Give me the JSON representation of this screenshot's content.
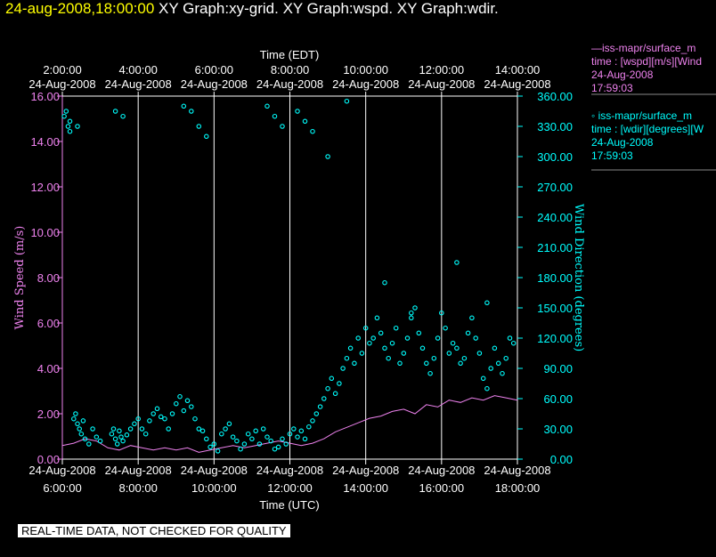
{
  "header": {
    "datetime": "24-aug-2008,18:00:00",
    "graph_titles": "XY Graph:xy-grid.  XY Graph:wspd.  XY Graph:wdir."
  },
  "legend": {
    "wspd": {
      "line1": "iss-mapr/surface_m",
      "line2": "time : [wspd][m/s][Wind",
      "line3": "24-Aug-2008",
      "line4": "17:59:03"
    },
    "wdir": {
      "line1": "iss-mapr/surface_m",
      "line2": "time : [wdir][degrees][W",
      "line3": "24-Aug-2008",
      "line4": "17:59:03"
    }
  },
  "footer": {
    "qc_note": "REAL-TIME DATA, NOT CHECKED FOR QUALITY"
  },
  "colors": {
    "wspd": "#ee82ee",
    "wdir": "#00ffff",
    "date": "#ffff00",
    "background": "#000000"
  },
  "chart_data": {
    "type": "line",
    "top_axis": {
      "label": "Time (EDT)",
      "ticks": [
        {
          "x": 2,
          "time": "2:00:00",
          "date": "24-Aug-2008"
        },
        {
          "x": 4,
          "time": "4:00:00",
          "date": "24-Aug-2008"
        },
        {
          "x": 6,
          "time": "6:00:00",
          "date": "24-Aug-2008"
        },
        {
          "x": 8,
          "time": "8:00:00",
          "date": "24-Aug-2008"
        },
        {
          "x": 10,
          "time": "10:00:00",
          "date": "24-Aug-2008"
        },
        {
          "x": 12,
          "time": "12:00:00",
          "date": "24-Aug-2008"
        },
        {
          "x": 14,
          "time": "14:00:00",
          "date": "24-Aug-2008"
        }
      ]
    },
    "bottom_axis": {
      "label": "Time (UTC)",
      "ticks": [
        {
          "x": 6,
          "time": "6:00:00",
          "date": "24-Aug-2008"
        },
        {
          "x": 8,
          "time": "8:00:00",
          "date": "24-Aug-2008"
        },
        {
          "x": 10,
          "time": "10:00:00",
          "date": "24-Aug-2008"
        },
        {
          "x": 12,
          "time": "12:00:00",
          "date": "24-Aug-2008"
        },
        {
          "x": 14,
          "time": "14:00:00",
          "date": "24-Aug-2008"
        },
        {
          "x": 16,
          "time": "16:00:00",
          "date": "24-Aug-2008"
        },
        {
          "x": 18,
          "time": "18:00:00",
          "date": "24-Aug-2008"
        }
      ]
    },
    "xlim": [
      6,
      18
    ],
    "left_axis": {
      "label": "Wind Speed (m/s)",
      "ylim": [
        0,
        16
      ],
      "ticks": [
        "0.00",
        "2.00",
        "4.00",
        "6.00",
        "8.00",
        "10.00",
        "12.00",
        "14.00",
        "16.00"
      ]
    },
    "right_axis": {
      "label": "Wind Direction (degrees)",
      "ylim": [
        0,
        360
      ],
      "ticks": [
        "0.00",
        "30.00",
        "60.00",
        "90.00",
        "120.00",
        "150.00",
        "180.00",
        "210.00",
        "240.00",
        "270.00",
        "300.00",
        "330.00",
        "360.00"
      ]
    },
    "series": [
      {
        "name": "wspd",
        "kind": "line",
        "axis": "left",
        "x": [
          6.0,
          6.3,
          6.6,
          6.9,
          7.2,
          7.5,
          7.8,
          8.1,
          8.4,
          8.7,
          9.0,
          9.3,
          9.6,
          9.9,
          10.2,
          10.5,
          10.8,
          11.1,
          11.4,
          11.7,
          12.0,
          12.3,
          12.6,
          12.9,
          13.2,
          13.5,
          13.8,
          14.1,
          14.4,
          14.7,
          15.0,
          15.3,
          15.6,
          15.9,
          16.2,
          16.5,
          16.8,
          17.1,
          17.4,
          17.7,
          18.0
        ],
        "y": [
          0.6,
          0.7,
          0.9,
          0.8,
          0.5,
          0.4,
          0.6,
          0.5,
          0.4,
          0.5,
          0.4,
          0.5,
          0.3,
          0.4,
          0.5,
          0.6,
          0.5,
          0.6,
          0.7,
          0.8,
          0.7,
          0.6,
          0.7,
          0.9,
          1.2,
          1.4,
          1.6,
          1.8,
          1.9,
          2.1,
          2.2,
          2.0,
          2.4,
          2.3,
          2.6,
          2.5,
          2.7,
          2.6,
          2.8,
          2.7,
          2.6
        ]
      },
      {
        "name": "wdir",
        "kind": "scatter",
        "axis": "right",
        "x": [
          6.05,
          6.1,
          6.15,
          6.2,
          6.3,
          6.35,
          6.4,
          6.45,
          6.5,
          6.55,
          6.6,
          6.7,
          6.8,
          6.9,
          7.0,
          7.3,
          7.35,
          7.4,
          7.45,
          7.5,
          7.55,
          7.6,
          7.7,
          7.8,
          7.9,
          8.0,
          8.1,
          8.2,
          8.3,
          8.4,
          8.5,
          8.6,
          8.7,
          8.8,
          8.9,
          9.0,
          9.1,
          9.2,
          9.3,
          9.4,
          9.5,
          9.6,
          9.7,
          9.8,
          9.9,
          10.0,
          10.1,
          10.2,
          10.3,
          10.4,
          10.5,
          10.6,
          10.7,
          10.8,
          10.9,
          11.0,
          11.1,
          11.2,
          11.3,
          11.4,
          11.5,
          11.6,
          11.7,
          11.8,
          11.9,
          12.0,
          12.1,
          12.2,
          12.3,
          12.4,
          12.5,
          12.6,
          12.7,
          12.8,
          12.9,
          13.0,
          13.1,
          13.2,
          13.3,
          13.4,
          13.5,
          13.6,
          13.7,
          13.8,
          13.9,
          14.0,
          14.1,
          14.2,
          14.3,
          14.4,
          14.5,
          14.6,
          14.7,
          14.8,
          14.9,
          15.0,
          15.1,
          15.2,
          15.3,
          15.4,
          15.5,
          15.6,
          15.7,
          15.8,
          15.9,
          16.0,
          16.1,
          16.2,
          16.3,
          16.4,
          16.5,
          16.6,
          16.7,
          16.8,
          16.9,
          17.0,
          17.1,
          17.2,
          17.3,
          17.4,
          17.5,
          17.6,
          17.7,
          17.8,
          17.9,
          6.2,
          6.4,
          7.4,
          7.6,
          9.2,
          9.4,
          9.6,
          9.8,
          11.4,
          11.6,
          11.8,
          12.2,
          12.4,
          12.6,
          13.0,
          13.5,
          14.5,
          15.2,
          16.4,
          17.2
        ],
        "y": [
          340,
          345,
          330,
          325,
          40,
          45,
          35,
          30,
          25,
          38,
          20,
          15,
          30,
          22,
          18,
          25,
          30,
          20,
          15,
          28,
          22,
          18,
          24,
          30,
          35,
          40,
          30,
          25,
          38,
          45,
          50,
          42,
          40,
          30,
          45,
          55,
          62,
          48,
          58,
          52,
          40,
          30,
          28,
          20,
          12,
          15,
          8,
          25,
          30,
          35,
          22,
          18,
          10,
          15,
          25,
          20,
          28,
          15,
          30,
          22,
          18,
          10,
          12,
          20,
          15,
          25,
          30,
          22,
          28,
          20,
          32,
          38,
          45,
          52,
          60,
          70,
          80,
          65,
          75,
          90,
          100,
          110,
          95,
          120,
          105,
          130,
          115,
          120,
          140,
          125,
          110,
          100,
          115,
          130,
          95,
          105,
          120,
          140,
          150,
          125,
          110,
          95,
          85,
          100,
          120,
          145,
          130,
          105,
          115,
          110,
          95,
          100,
          125,
          140,
          120,
          105,
          80,
          70,
          90,
          110,
          95,
          85,
          100,
          120,
          115,
          335,
          330,
          345,
          340,
          350,
          345,
          330,
          320,
          350,
          340,
          330,
          345,
          335,
          325,
          300,
          355,
          175,
          145,
          195,
          155
        ]
      }
    ]
  }
}
